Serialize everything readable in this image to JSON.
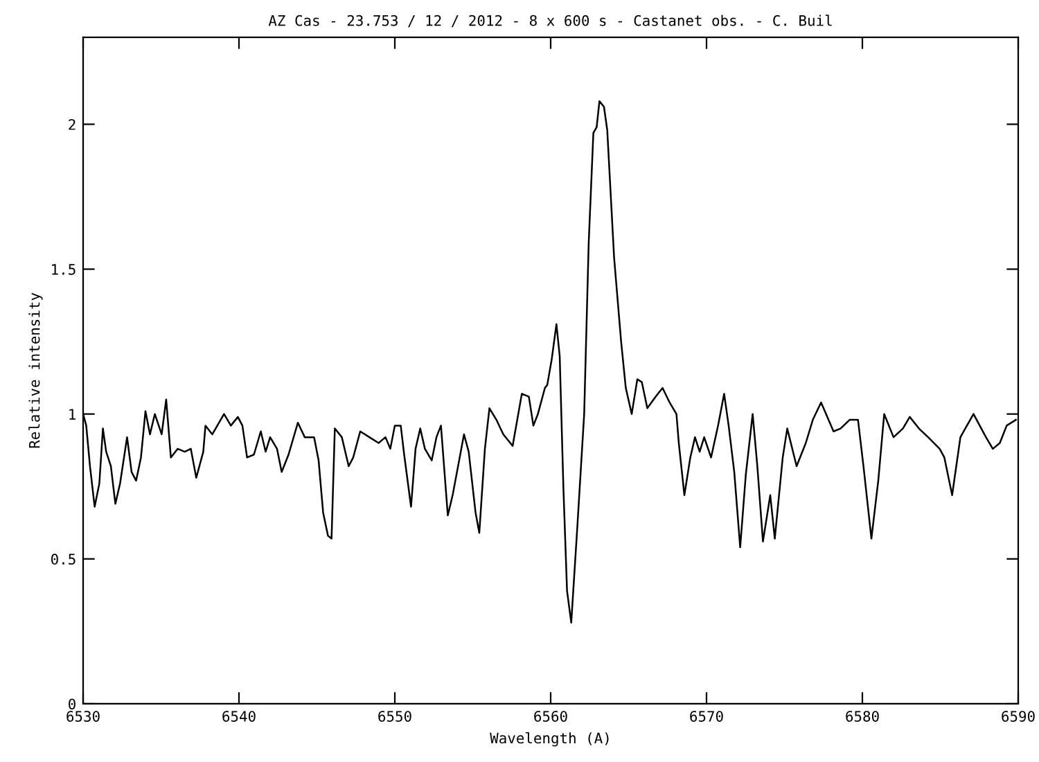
{
  "chart_data": {
    "type": "line",
    "title": "AZ Cas - 23.753 / 12 / 2012 - 8 x 600 s - Castanet obs. - C. Buil",
    "xlabel": "Wavelength (A)",
    "ylabel": "Relative intensity",
    "xlim": [
      6530,
      6590
    ],
    "ylim": [
      0,
      2.3
    ],
    "xticks": [
      6530,
      6540,
      6550,
      6560,
      6570,
      6580,
      6590
    ],
    "yticks": [
      0,
      0.5,
      1,
      1.5,
      2
    ],
    "grid": false,
    "legend": false,
    "marker": "none",
    "line_style": "solid",
    "series": [
      {
        "color": "#000000",
        "x": [
          6530.0,
          6530.2,
          6530.44,
          6530.74,
          6531.04,
          6531.27,
          6531.48,
          6531.78,
          6532.07,
          6532.37,
          6532.82,
          6533.11,
          6533.4,
          6533.71,
          6534.0,
          6534.29,
          6534.6,
          6535.04,
          6535.33,
          6535.63,
          6536.07,
          6536.52,
          6536.91,
          6537.26,
          6537.71,
          6537.85,
          6538.29,
          6539.04,
          6539.48,
          6539.93,
          6540.22,
          6540.52,
          6540.96,
          6541.4,
          6541.71,
          6542.0,
          6542.44,
          6542.74,
          6543.18,
          6543.78,
          6544.22,
          6544.82,
          6545.11,
          6545.4,
          6545.71,
          6545.94,
          6546.15,
          6546.6,
          6547.04,
          6547.33,
          6547.78,
          6548.37,
          6548.96,
          6549.4,
          6549.71,
          6550.0,
          6550.38,
          6550.6,
          6551.04,
          6551.33,
          6551.63,
          6551.93,
          6552.37,
          6552.67,
          6552.96,
          6553.4,
          6553.71,
          6554.44,
          6554.74,
          6555.18,
          6555.42,
          6555.78,
          6556.07,
          6556.52,
          6556.96,
          6557.56,
          6558.15,
          6558.6,
          6558.89,
          6559.18,
          6559.63,
          6559.78,
          6560.07,
          6560.37,
          6560.58,
          6560.82,
          6561.05,
          6561.32,
          6561.71,
          6562.15,
          6562.44,
          6562.74,
          6562.95,
          6563.13,
          6563.42,
          6563.63,
          6564.07,
          6564.52,
          6564.82,
          6565.2,
          6565.56,
          6565.85,
          6566.2,
          6566.74,
          6567.18,
          6567.63,
          6568.07,
          6568.22,
          6568.58,
          6568.96,
          6569.26,
          6569.56,
          6569.85,
          6570.29,
          6570.74,
          6571.13,
          6571.42,
          6571.78,
          6572.16,
          6572.52,
          6572.96,
          6573.26,
          6573.62,
          6574.09,
          6574.38,
          6574.89,
          6575.18,
          6575.78,
          6576.37,
          6576.82,
          6577.35,
          6578.15,
          6578.6,
          6579.18,
          6579.72,
          6580.07,
          6580.58,
          6581.02,
          6581.4,
          6582.0,
          6582.6,
          6583.04,
          6583.63,
          6584.22,
          6584.96,
          6585.26,
          6585.76,
          6586.29,
          6587.13,
          6587.93,
          6588.37,
          6588.82,
          6589.26,
          6589.85
        ],
        "values": [
          1.0,
          0.96,
          0.82,
          0.68,
          0.76,
          0.95,
          0.87,
          0.82,
          0.69,
          0.76,
          0.92,
          0.8,
          0.77,
          0.85,
          1.01,
          0.93,
          1.0,
          0.93,
          1.05,
          0.85,
          0.88,
          0.87,
          0.88,
          0.78,
          0.87,
          0.96,
          0.93,
          1.0,
          0.96,
          0.99,
          0.96,
          0.85,
          0.86,
          0.94,
          0.87,
          0.92,
          0.88,
          0.8,
          0.86,
          0.97,
          0.92,
          0.92,
          0.84,
          0.66,
          0.58,
          0.57,
          0.95,
          0.92,
          0.82,
          0.85,
          0.94,
          0.92,
          0.9,
          0.92,
          0.88,
          0.96,
          0.96,
          0.86,
          0.68,
          0.88,
          0.95,
          0.88,
          0.84,
          0.92,
          0.96,
          0.65,
          0.72,
          0.93,
          0.87,
          0.66,
          0.59,
          0.88,
          1.02,
          0.98,
          0.93,
          0.89,
          1.07,
          1.06,
          0.96,
          1.0,
          1.09,
          1.1,
          1.19,
          1.31,
          1.2,
          0.74,
          0.39,
          0.28,
          0.61,
          1.0,
          1.59,
          1.97,
          1.99,
          2.08,
          2.06,
          1.98,
          1.54,
          1.25,
          1.09,
          1.0,
          1.12,
          1.11,
          1.02,
          1.06,
          1.09,
          1.04,
          1.0,
          0.9,
          0.72,
          0.85,
          0.92,
          0.87,
          0.92,
          0.85,
          0.96,
          1.07,
          0.96,
          0.8,
          0.54,
          0.79,
          1.0,
          0.82,
          0.56,
          0.72,
          0.57,
          0.85,
          0.95,
          0.82,
          0.9,
          0.98,
          1.04,
          0.94,
          0.95,
          0.98,
          0.98,
          0.82,
          0.57,
          0.77,
          1.0,
          0.92,
          0.95,
          0.99,
          0.95,
          0.92,
          0.88,
          0.85,
          0.72,
          0.92,
          1.0,
          0.92,
          0.88,
          0.9,
          0.96,
          0.98
        ]
      }
    ]
  }
}
